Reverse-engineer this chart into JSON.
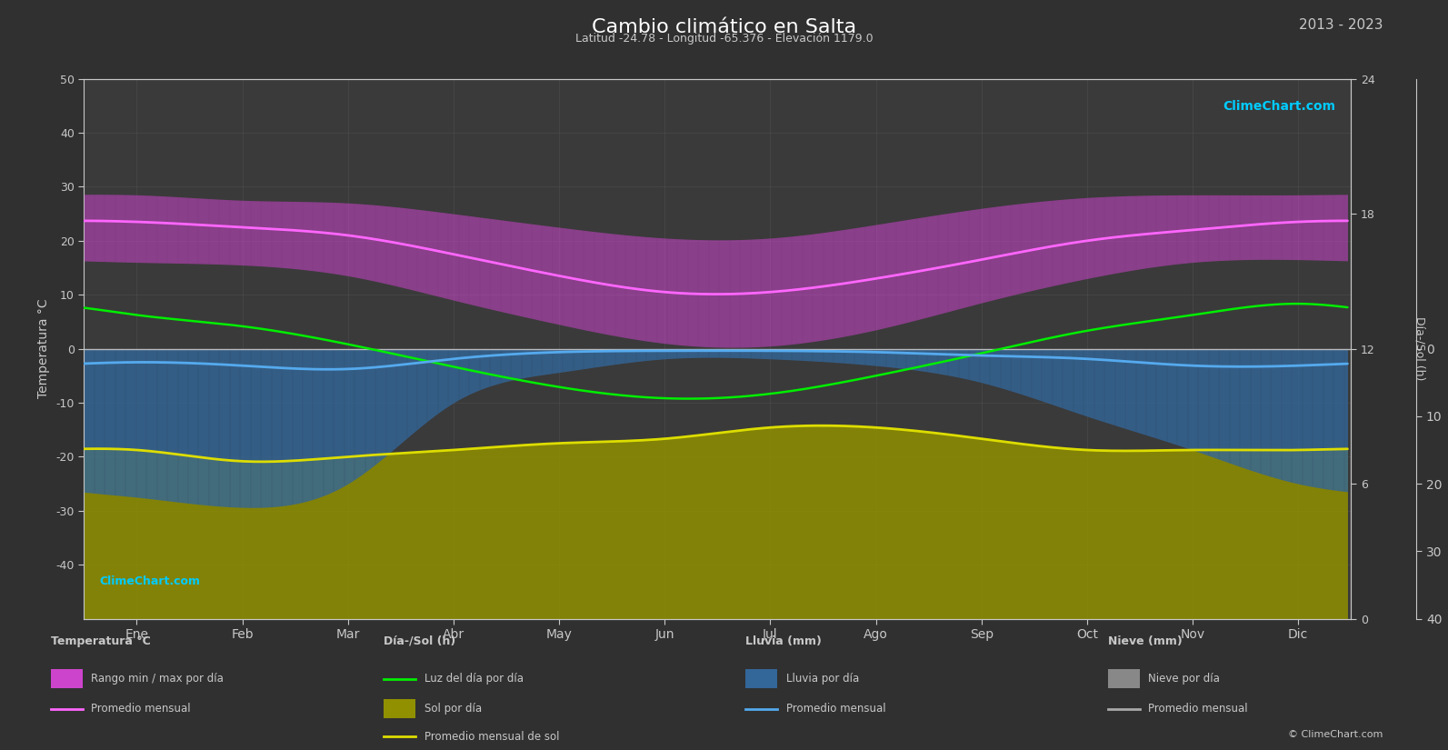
{
  "title": "Cambio climático en Salta",
  "subtitle": "Latitud -24.78 - Longitud -65.376 - Elevación 1179.0",
  "year_range": "2013 - 2023",
  "months": [
    "Ene",
    "Feb",
    "Mar",
    "Abr",
    "May",
    "Jun",
    "Jul",
    "Ago",
    "Sep",
    "Oct",
    "Nov",
    "Dic"
  ],
  "bg_color": "#303030",
  "plot_bg_color": "#3a3a3a",
  "grid_color": "#505050",
  "text_color": "#c8c8c8",
  "temp_ylim": [
    -50,
    50
  ],
  "temp_avg_monthly": [
    23.5,
    22.5,
    21.0,
    17.5,
    13.5,
    10.5,
    10.5,
    13.0,
    16.5,
    20.0,
    22.0,
    23.5
  ],
  "temp_max_monthly": [
    28.5,
    27.5,
    27.0,
    25.0,
    22.5,
    20.5,
    20.5,
    23.0,
    26.0,
    28.0,
    28.5,
    28.5
  ],
  "temp_min_monthly": [
    16.0,
    15.5,
    13.5,
    9.0,
    4.5,
    1.0,
    0.5,
    3.5,
    8.5,
    13.0,
    16.0,
    16.5
  ],
  "daylight_hours_monthly": [
    13.5,
    13.0,
    12.2,
    11.2,
    10.3,
    9.8,
    10.0,
    10.8,
    11.8,
    12.8,
    13.5,
    14.0
  ],
  "sun_hours_monthly": [
    7.5,
    7.0,
    7.2,
    7.5,
    7.8,
    8.0,
    8.5,
    8.5,
    8.0,
    7.5,
    7.5,
    7.5
  ],
  "rain_avg_monthly_mm": [
    2.0,
    2.5,
    3.0,
    1.5,
    0.5,
    0.3,
    0.3,
    0.5,
    1.0,
    1.5,
    2.5,
    2.5
  ],
  "rain_max_monthly_mm": [
    22.0,
    23.5,
    20.0,
    8.0,
    3.5,
    1.5,
    1.5,
    2.5,
    5.0,
    10.0,
    15.0,
    20.0
  ],
  "daylight_axis_max": 24,
  "daylight_axis_ticks": [
    0,
    6,
    12,
    18,
    24
  ],
  "rain_axis_max": 40,
  "rain_axis_ticks": [
    0,
    10,
    20,
    30,
    40
  ],
  "color_temp_bar": "#cc44cc",
  "color_temp_avg": "#ff66ff",
  "color_daylight": "#00ee00",
  "color_sun_bar": "#909000",
  "color_sun_avg": "#dddd00",
  "color_rain_bar": "#336699",
  "color_rain_avg": "#55aaee",
  "color_snow_bar": "#888888",
  "color_snow_avg": "#aaaaaa",
  "color_logo": "#00ccff",
  "legend_sections": [
    "Temperatura °C",
    "Día-/Sol (h)",
    "Lluvia (mm)",
    "Nieve (mm)"
  ],
  "legend_row1": [
    "Rango min / max por día",
    "Luz del día por día",
    "Lluvia por día",
    "Nieve por día"
  ],
  "legend_row2": [
    "Promedio mensual",
    "Sol por día",
    "Promedio mensual",
    "Promedio mensual"
  ],
  "legend_row3": [
    "",
    "Promedio mensual de sol",
    "",
    ""
  ],
  "copyright": "© ClimeChart.com"
}
